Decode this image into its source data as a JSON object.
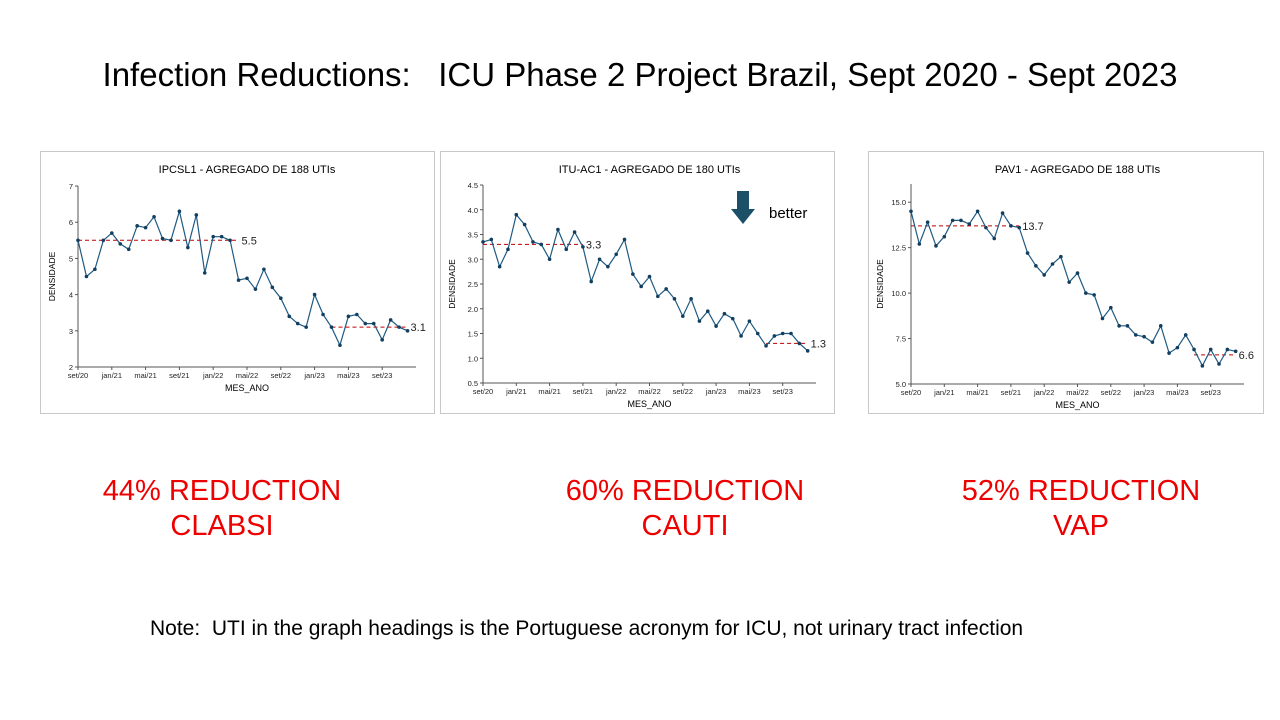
{
  "slide": {
    "title": "Infection Reductions:   ICU Phase 2 Project Brazil, Sept 2020 - Sept 2023",
    "note": "Note:  UTI in the graph headings is the Portuguese acronym for ICU, not urinary tract infection",
    "reductions": [
      {
        "percent": "44% REDUCTION",
        "label": "CLABSI"
      },
      {
        "percent": "60% REDUCTION",
        "label": "CAUTI"
      },
      {
        "percent": "52% REDUCTION",
        "label": "VAP"
      }
    ]
  },
  "colors": {
    "series": "#1f5a82",
    "marker": "#123f60",
    "median": "#c00000",
    "reduction_text": "#ee0000",
    "arrow": "#1c4f68"
  },
  "chart_data": [
    {
      "type": "line",
      "title": "IPCSL1 - AGREGADO DE 188 UTIs",
      "xlabel": "MES_ANO",
      "ylabel": "DENSIDADE",
      "xticks": [
        {
          "i": 0,
          "label": "set/20"
        },
        {
          "i": 4,
          "label": "jan/21"
        },
        {
          "i": 8,
          "label": "mai/21"
        },
        {
          "i": 12,
          "label": "set/21"
        },
        {
          "i": 16,
          "label": "jan/22"
        },
        {
          "i": 20,
          "label": "mai/22"
        },
        {
          "i": 24,
          "label": "set/22"
        },
        {
          "i": 28,
          "label": "jan/23"
        },
        {
          "i": 32,
          "label": "mai/23"
        },
        {
          "i": 36,
          "label": "set/23"
        }
      ],
      "yticks": [
        2,
        3,
        4,
        5,
        6,
        7
      ],
      "ylim": [
        2,
        7
      ],
      "xmax": 40,
      "values": [
        5.5,
        4.5,
        4.7,
        5.5,
        5.7,
        5.4,
        5.25,
        5.9,
        5.85,
        6.15,
        5.55,
        5.5,
        6.3,
        5.3,
        6.2,
        4.6,
        5.6,
        5.6,
        5.5,
        4.4,
        4.45,
        4.15,
        4.7,
        4.2,
        3.9,
        3.4,
        3.2,
        3.1,
        4.0,
        3.45,
        3.1,
        2.6,
        3.4,
        3.45,
        3.2,
        3.2,
        2.75,
        3.3,
        3.1,
        3.0
      ],
      "median": [
        {
          "start": 0,
          "end": 19,
          "value": 5.5,
          "label": "5.5"
        },
        {
          "start": 30,
          "end": 39,
          "value": 3.1,
          "label": "3.1"
        }
      ],
      "legend": "none",
      "grid": false
    },
    {
      "type": "line",
      "title": "ITU-AC1 - AGREGADO DE 180 UTIs",
      "xlabel": "MES_ANO",
      "ylabel": "DENSIDADE",
      "annotation": "better",
      "xticks": [
        {
          "i": 0,
          "label": "set/20"
        },
        {
          "i": 4,
          "label": "jan/21"
        },
        {
          "i": 8,
          "label": "mai/21"
        },
        {
          "i": 12,
          "label": "set/21"
        },
        {
          "i": 16,
          "label": "jan/22"
        },
        {
          "i": 20,
          "label": "mai/22"
        },
        {
          "i": 24,
          "label": "set/22"
        },
        {
          "i": 28,
          "label": "jan/23"
        },
        {
          "i": 32,
          "label": "mai/23"
        },
        {
          "i": 36,
          "label": "set/23"
        }
      ],
      "yticks": [
        0.5,
        1.0,
        1.5,
        2.0,
        2.5,
        3.0,
        3.5,
        4.0,
        4.5
      ],
      "ytick_labels": [
        "0.5",
        "1.0",
        "1.5",
        "2.0",
        "2.5",
        "3.0",
        "3.5",
        "4.0",
        "4.5"
      ],
      "ylim": [
        0.5,
        4.5
      ],
      "xmax": 40,
      "values": [
        3.35,
        3.4,
        2.85,
        3.2,
        3.9,
        3.7,
        3.35,
        3.3,
        3.0,
        3.6,
        3.2,
        3.55,
        3.25,
        2.55,
        3.0,
        2.85,
        3.1,
        3.4,
        2.7,
        2.45,
        2.65,
        2.25,
        2.4,
        2.2,
        1.85,
        2.2,
        1.75,
        1.95,
        1.65,
        1.9,
        1.8,
        1.45,
        1.75,
        1.5,
        1.25,
        1.45,
        1.5,
        1.5,
        1.3,
        1.15
      ],
      "median": [
        {
          "start": 0,
          "end": 12,
          "value": 3.3,
          "label": "3.3"
        },
        {
          "start": 34,
          "end": 39,
          "value": 1.3,
          "label": "1.3"
        }
      ],
      "legend": "none",
      "grid": false
    },
    {
      "type": "line",
      "title": "PAV1 - AGREGADO DE 188 UTIs",
      "xlabel": "MES_ANO",
      "ylabel": "DENSIDADE",
      "xticks": [
        {
          "i": 0,
          "label": "set/20"
        },
        {
          "i": 4,
          "label": "jan/21"
        },
        {
          "i": 8,
          "label": "mai/21"
        },
        {
          "i": 12,
          "label": "set/21"
        },
        {
          "i": 16,
          "label": "jan/22"
        },
        {
          "i": 20,
          "label": "mai/22"
        },
        {
          "i": 24,
          "label": "set/22"
        },
        {
          "i": 28,
          "label": "jan/23"
        },
        {
          "i": 32,
          "label": "mai/23"
        },
        {
          "i": 36,
          "label": "set/23"
        }
      ],
      "yticks": [
        5.0,
        7.5,
        10.0,
        12.5,
        15.0
      ],
      "ytick_labels": [
        "5.0",
        "7.5",
        "10.0",
        "12.5",
        "15.0"
      ],
      "ylim": [
        5,
        16
      ],
      "xmax": 40,
      "values": [
        14.5,
        12.7,
        13.9,
        12.6,
        13.1,
        14.0,
        14.0,
        13.8,
        14.5,
        13.6,
        13.0,
        14.4,
        13.7,
        13.6,
        12.2,
        11.5,
        11.0,
        11.6,
        12.0,
        10.6,
        11.1,
        10.0,
        9.9,
        8.6,
        9.2,
        8.2,
        8.2,
        7.7,
        7.6,
        7.3,
        8.2,
        6.7,
        7.0,
        7.7,
        6.9,
        6.0,
        6.9,
        6.1,
        6.9,
        6.8
      ],
      "median": [
        {
          "start": 0,
          "end": 13,
          "value": 13.7,
          "label": "13.7"
        },
        {
          "start": 34,
          "end": 39,
          "value": 6.6,
          "label": "6.6"
        }
      ],
      "legend": "none",
      "grid": false
    }
  ]
}
